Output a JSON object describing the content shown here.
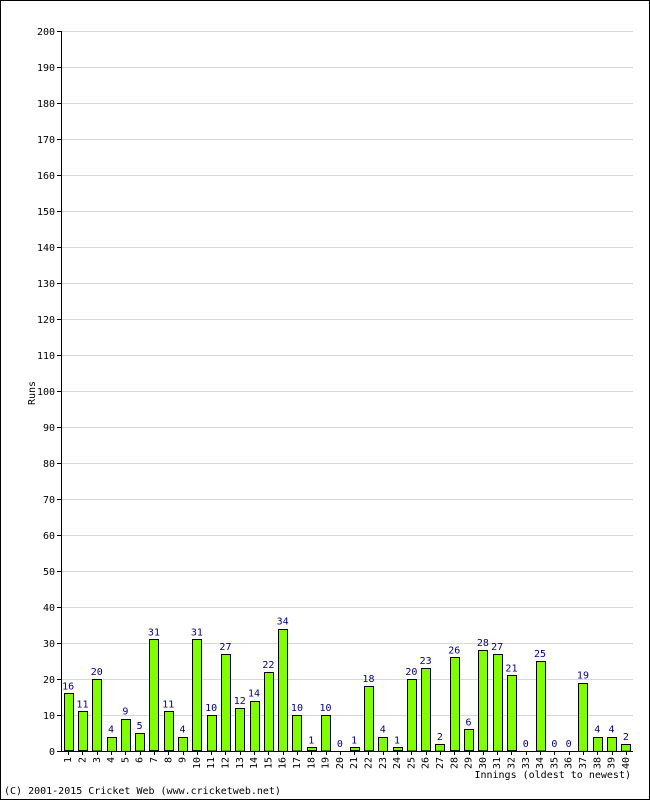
{
  "chart_data": {
    "type": "bar",
    "title": "",
    "xlabel": "Innings (oldest to newest)",
    "ylabel": "Runs",
    "ylim": [
      0,
      200
    ],
    "y_ticks": [
      0,
      10,
      20,
      30,
      40,
      50,
      60,
      70,
      80,
      90,
      100,
      110,
      120,
      130,
      140,
      150,
      160,
      170,
      180,
      190,
      200
    ],
    "grid": true,
    "categories": [
      "1",
      "2",
      "3",
      "4",
      "5",
      "6",
      "7",
      "8",
      "9",
      "10",
      "11",
      "12",
      "13",
      "14",
      "15",
      "16",
      "17",
      "18",
      "19",
      "20",
      "21",
      "22",
      "23",
      "24",
      "25",
      "26",
      "27",
      "28",
      "29",
      "30",
      "31",
      "32",
      "33",
      "34",
      "35",
      "36",
      "37",
      "38",
      "39",
      "40"
    ],
    "series": [
      {
        "values": [
          16,
          11,
          20,
          4,
          9,
          5,
          31,
          11,
          4,
          31,
          10,
          27,
          12,
          14,
          22,
          34,
          10,
          1,
          10,
          0,
          1,
          18,
          4,
          1,
          20,
          23,
          2,
          26,
          6,
          28,
          27,
          21,
          0,
          25,
          0,
          0,
          19,
          4,
          4,
          2
        ]
      }
    ],
    "colors": {
      "bar_fill": "#80ff00",
      "bar_stroke": "#000000",
      "data_label": "#000080",
      "grid": "#d8d8d8",
      "axis": "#000000"
    }
  },
  "footer": {
    "copyright": "(C) 2001-2015 Cricket Web (www.cricketweb.net)"
  }
}
